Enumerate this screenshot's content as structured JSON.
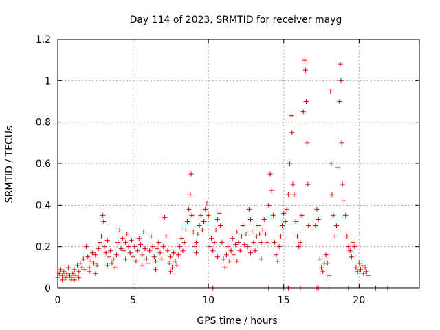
{
  "chart_data": {
    "type": "scatter",
    "title": "Day 114 of 2023, SRMTID for receiver mayg",
    "xlabel": "GPS time / hours",
    "ylabel": "SRMTID / TECUs",
    "xlim": [
      0,
      24
    ],
    "ylim": [
      0,
      1.2
    ],
    "xticks": [
      0,
      5,
      10,
      15,
      20
    ],
    "xtick_labels": [
      "0",
      "5",
      "10",
      "15",
      "20"
    ],
    "yticks": [
      0,
      0.2,
      0.4,
      0.6,
      0.8,
      1,
      1.2
    ],
    "ytick_labels": [
      "0",
      "0.2",
      "0.4",
      "0.6",
      "0.8",
      "1",
      "1.2"
    ],
    "grid": true,
    "marker": "+",
    "colors": {
      "series": "#e00000",
      "grid": "#a0a0a0",
      "axis": "#000000"
    },
    "series": [
      {
        "name": "SRMTID",
        "points": [
          [
            0.0,
            0.05
          ],
          [
            0.1,
            0.07
          ],
          [
            0.2,
            0.09
          ],
          [
            0.3,
            0.06
          ],
          [
            0.4,
            0.08
          ],
          [
            0.5,
            0.05
          ],
          [
            0.6,
            0.07
          ],
          [
            0.7,
            0.1
          ],
          [
            0.8,
            0.06
          ],
          [
            0.9,
            0.05
          ],
          [
            1.0,
            0.07
          ],
          [
            1.1,
            0.09
          ],
          [
            1.2,
            0.06
          ],
          [
            1.3,
            0.11
          ],
          [
            1.4,
            0.08
          ],
          [
            1.5,
            0.12
          ],
          [
            1.6,
            0.1
          ],
          [
            1.7,
            0.14
          ],
          [
            1.8,
            0.09
          ],
          [
            1.9,
            0.2
          ],
          [
            2.0,
            0.15
          ],
          [
            2.1,
            0.1
          ],
          [
            2.2,
            0.13
          ],
          [
            2.3,
            0.17
          ],
          [
            2.4,
            0.12
          ],
          [
            2.5,
            0.16
          ],
          [
            2.6,
            0.11
          ],
          [
            2.7,
            0.19
          ],
          [
            2.8,
            0.22
          ],
          [
            2.9,
            0.25
          ],
          [
            3.0,
            0.35
          ],
          [
            3.05,
            0.32
          ],
          [
            3.1,
            0.2
          ],
          [
            3.2,
            0.17
          ],
          [
            3.3,
            0.23
          ],
          [
            3.4,
            0.15
          ],
          [
            3.5,
            0.18
          ],
          [
            3.6,
            0.12
          ],
          [
            3.7,
            0.14
          ],
          [
            3.8,
            0.1
          ],
          [
            3.9,
            0.16
          ],
          [
            4.0,
            0.22
          ],
          [
            4.1,
            0.28
          ],
          [
            4.2,
            0.19
          ],
          [
            4.3,
            0.24
          ],
          [
            4.4,
            0.18
          ],
          [
            4.5,
            0.22
          ],
          [
            4.6,
            0.26
          ],
          [
            4.7,
            0.2
          ],
          [
            4.8,
            0.17
          ],
          [
            4.9,
            0.23
          ],
          [
            5.0,
            0.15
          ],
          [
            5.1,
            0.2
          ],
          [
            5.2,
            0.13
          ],
          [
            5.3,
            0.18
          ],
          [
            5.4,
            0.24
          ],
          [
            5.5,
            0.21
          ],
          [
            5.6,
            0.16
          ],
          [
            5.7,
            0.27
          ],
          [
            5.8,
            0.19
          ],
          [
            5.9,
            0.14
          ],
          [
            6.0,
            0.12
          ],
          [
            6.1,
            0.18
          ],
          [
            6.2,
            0.25
          ],
          [
            6.3,
            0.2
          ],
          [
            6.4,
            0.15
          ],
          [
            6.5,
            0.13
          ],
          [
            6.6,
            0.19
          ],
          [
            6.7,
            0.22
          ],
          [
            6.8,
            0.17
          ],
          [
            6.9,
            0.14
          ],
          [
            7.0,
            0.2
          ],
          [
            7.1,
            0.34
          ],
          [
            7.2,
            0.25
          ],
          [
            7.3,
            0.18
          ],
          [
            7.4,
            0.12
          ],
          [
            7.5,
            0.15
          ],
          [
            7.6,
            0.1
          ],
          [
            7.7,
            0.17
          ],
          [
            7.8,
            0.13
          ],
          [
            7.9,
            0.11
          ],
          [
            8.0,
            0.16
          ],
          [
            8.1,
            0.2
          ],
          [
            8.2,
            0.24
          ],
          [
            8.3,
            0.18
          ],
          [
            8.4,
            0.22
          ],
          [
            8.5,
            0.28
          ],
          [
            8.6,
            0.32
          ],
          [
            8.7,
            0.38
          ],
          [
            8.8,
            0.45
          ],
          [
            8.85,
            0.55
          ],
          [
            8.9,
            0.35
          ],
          [
            9.0,
            0.27
          ],
          [
            9.1,
            0.2
          ],
          [
            9.2,
            0.22
          ],
          [
            9.3,
            0.26
          ],
          [
            9.4,
            0.3
          ],
          [
            9.5,
            0.35
          ],
          [
            9.6,
            0.28
          ],
          [
            9.7,
            0.32
          ],
          [
            9.8,
            0.38
          ],
          [
            9.9,
            0.41
          ],
          [
            10.0,
            0.35
          ],
          [
            10.1,
            0.2
          ],
          [
            10.2,
            0.24
          ],
          [
            10.3,
            0.18
          ],
          [
            10.4,
            0.22
          ],
          [
            10.5,
            0.28
          ],
          [
            10.6,
            0.33
          ],
          [
            10.7,
            0.36
          ],
          [
            10.8,
            0.3
          ],
          [
            10.9,
            0.22
          ],
          [
            11.0,
            0.14
          ],
          [
            11.1,
            0.1
          ],
          [
            11.2,
            0.16
          ],
          [
            11.3,
            0.2
          ],
          [
            11.4,
            0.13
          ],
          [
            11.5,
            0.18
          ],
          [
            11.6,
            0.24
          ],
          [
            11.7,
            0.16
          ],
          [
            11.8,
            0.21
          ],
          [
            11.9,
            0.27
          ],
          [
            12.0,
            0.22
          ],
          [
            12.1,
            0.18
          ],
          [
            12.2,
            0.25
          ],
          [
            12.3,
            0.3
          ],
          [
            12.4,
            0.21
          ],
          [
            12.5,
            0.26
          ],
          [
            12.6,
            0.2
          ],
          [
            12.7,
            0.38
          ],
          [
            12.8,
            0.33
          ],
          [
            12.9,
            0.27
          ],
          [
            13.0,
            0.22
          ],
          [
            13.1,
            0.18
          ],
          [
            13.2,
            0.25
          ],
          [
            13.3,
            0.3
          ],
          [
            13.4,
            0.26
          ],
          [
            13.5,
            0.22
          ],
          [
            13.6,
            0.28
          ],
          [
            13.7,
            0.33
          ],
          [
            13.8,
            0.26
          ],
          [
            13.9,
            0.22
          ],
          [
            14.0,
            0.4
          ],
          [
            14.1,
            0.55
          ],
          [
            14.2,
            0.47
          ],
          [
            14.3,
            0.35
          ],
          [
            14.4,
            0.22
          ],
          [
            14.5,
            0.16
          ],
          [
            14.6,
            0.13
          ],
          [
            14.7,
            0.2
          ],
          [
            14.8,
            0.25
          ],
          [
            14.9,
            0.3
          ],
          [
            15.0,
            0.36
          ],
          [
            15.1,
            0.32
          ],
          [
            15.2,
            0.38
          ],
          [
            15.3,
            0.45
          ],
          [
            15.4,
            0.6
          ],
          [
            15.5,
            0.83
          ],
          [
            15.55,
            0.75
          ],
          [
            15.6,
            0.5
          ],
          [
            15.7,
            0.45
          ],
          [
            15.8,
            0.32
          ],
          [
            15.9,
            0.25
          ],
          [
            16.0,
            0.2
          ],
          [
            16.1,
            0.22
          ],
          [
            16.2,
            0.35
          ],
          [
            16.3,
            0.85
          ],
          [
            16.4,
            1.1
          ],
          [
            16.45,
            1.05
          ],
          [
            16.5,
            0.9
          ],
          [
            16.55,
            0.7
          ],
          [
            16.6,
            0.5
          ],
          [
            16.65,
            0.3
          ],
          [
            17.1,
            0.3
          ],
          [
            17.2,
            0.38
          ],
          [
            17.3,
            0.33
          ],
          [
            17.4,
            0.14
          ],
          [
            17.5,
            0.1
          ],
          [
            17.6,
            0.08
          ],
          [
            17.7,
            0.12
          ],
          [
            17.8,
            0.16
          ],
          [
            17.9,
            0.12
          ],
          [
            18.0,
            0.06
          ],
          [
            18.1,
            0.95
          ],
          [
            18.15,
            0.6
          ],
          [
            18.2,
            0.45
          ],
          [
            18.3,
            0.35
          ],
          [
            18.4,
            0.25
          ],
          [
            18.5,
            0.3
          ],
          [
            18.6,
            0.58
          ],
          [
            18.7,
            0.9
          ],
          [
            18.75,
            1.08
          ],
          [
            18.8,
            1.0
          ],
          [
            18.85,
            0.7
          ],
          [
            18.9,
            0.5
          ],
          [
            19.0,
            0.42
          ],
          [
            19.1,
            0.35
          ],
          [
            19.2,
            0.25
          ],
          [
            19.3,
            0.2
          ],
          [
            19.4,
            0.18
          ],
          [
            19.5,
            0.15
          ],
          [
            19.6,
            0.22
          ],
          [
            19.7,
            0.2
          ],
          [
            19.8,
            0.1
          ],
          [
            19.9,
            0.08
          ],
          [
            20.0,
            0.12
          ],
          [
            20.1,
            0.09
          ],
          [
            20.2,
            0.11
          ],
          [
            20.3,
            0.07
          ],
          [
            20.4,
            0.1
          ],
          [
            20.5,
            0.08
          ],
          [
            20.6,
            0.06
          ],
          [
            10.3,
            0.0
          ],
          [
            14.0,
            0.0
          ],
          [
            15.0,
            0.0
          ],
          [
            15.3,
            0.0
          ],
          [
            16.1,
            0.0
          ],
          [
            17.2,
            0.0
          ],
          [
            17.3,
            0.0
          ],
          [
            18.0,
            0.0
          ],
          [
            19.3,
            0.0
          ],
          [
            21.1,
            0.0
          ],
          [
            21.9,
            0.0
          ],
          [
            0.3,
            0.04
          ],
          [
            0.6,
            0.05
          ],
          [
            0.9,
            0.04
          ],
          [
            1.1,
            0.04
          ],
          [
            1.4,
            0.05
          ],
          [
            2.1,
            0.08
          ],
          [
            2.5,
            0.07
          ],
          [
            3.3,
            0.11
          ],
          [
            4.5,
            0.14
          ],
          [
            5.6,
            0.11
          ],
          [
            6.5,
            0.09
          ],
          [
            7.5,
            0.08
          ],
          [
            9.2,
            0.17
          ],
          [
            10.6,
            0.15
          ],
          [
            11.9,
            0.13
          ],
          [
            12.8,
            0.17
          ],
          [
            13.5,
            0.14
          ]
        ]
      }
    ]
  }
}
